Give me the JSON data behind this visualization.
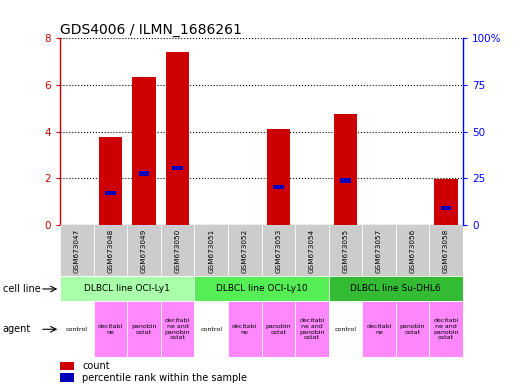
{
  "title": "GDS4006 / ILMN_1686261",
  "samples": [
    "GSM673047",
    "GSM673048",
    "GSM673049",
    "GSM673050",
    "GSM673051",
    "GSM673052",
    "GSM673053",
    "GSM673054",
    "GSM673055",
    "GSM673057",
    "GSM673056",
    "GSM673058"
  ],
  "counts": [
    0,
    3.75,
    6.35,
    7.4,
    0,
    0,
    4.1,
    0,
    4.75,
    0,
    0,
    1.95
  ],
  "percentile_ranks": [
    0,
    1.35,
    2.2,
    2.45,
    0,
    0,
    1.6,
    0,
    1.9,
    0,
    0,
    0.7
  ],
  "ylim_left": [
    0,
    8
  ],
  "ylim_right": [
    0,
    100
  ],
  "yticks_left": [
    0,
    2,
    4,
    6,
    8
  ],
  "yticks_right": [
    0,
    25,
    50,
    75,
    100
  ],
  "ytick_labels_right": [
    "0",
    "25",
    "50",
    "75",
    "100%"
  ],
  "bar_color": "#cc0000",
  "percentile_color": "#0000bb",
  "cell_line_defs": [
    {
      "label": "DLBCL line OCI-Ly1",
      "start": 0,
      "end": 3,
      "color": "#aaffaa"
    },
    {
      "label": "DLBCL line OCI-Ly10",
      "start": 4,
      "end": 7,
      "color": "#55ee55"
    },
    {
      "label": "DLBCL line Su-DHL6",
      "start": 8,
      "end": 11,
      "color": "#33bb33"
    }
  ],
  "agent_labels": [
    "control",
    "decitabi\nne",
    "panobin\nostat",
    "decitabi\nne and\npanobin\nostat"
  ],
  "agent_colors": [
    "#ffffff",
    "#ff88ff",
    "#ff88ff",
    "#ff88ff"
  ],
  "tick_bg_color": "#cccccc",
  "row_label_cellline": "cell line",
  "row_label_agent": "agent",
  "legend_count_label": "count",
  "legend_pct_label": "percentile rank within the sample",
  "legend_count_color": "#cc0000",
  "legend_pct_color": "#0000bb"
}
